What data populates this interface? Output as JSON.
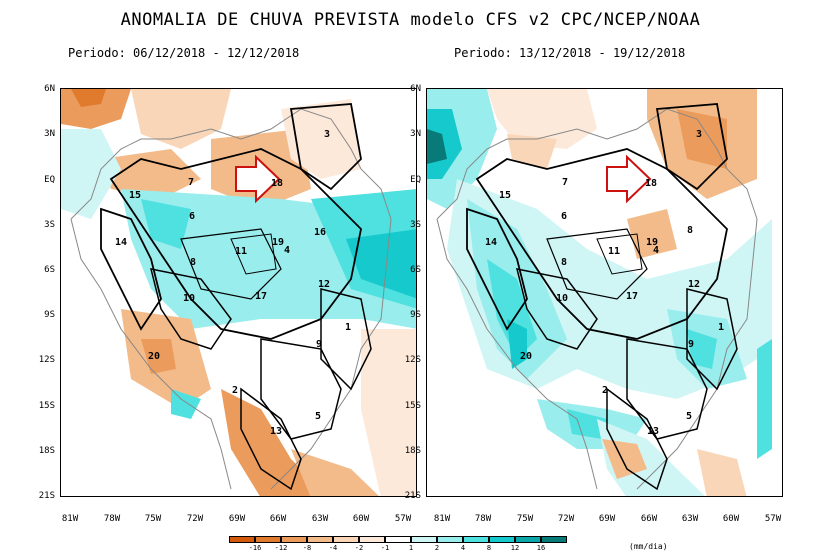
{
  "title": "ANOMALIA DE CHUVA PREVISTA modelo CFS v2 CPC/NCEP/NOAA",
  "panels": [
    {
      "period": "Periodo: 06/12/2018 - 12/12/2018",
      "region_numbers": [
        "3",
        "7",
        "18",
        "15",
        "6",
        "14",
        "19",
        "16",
        "4",
        "11",
        "8",
        "12",
        "17",
        "10",
        "1",
        "9",
        "20",
        "2",
        "5",
        "13"
      ]
    },
    {
      "period": "Periodo: 13/12/2018 - 19/12/2018",
      "region_numbers": [
        "3",
        "7",
        "18",
        "15",
        "6",
        "14",
        "19",
        "8",
        "4",
        "11",
        "8",
        "12",
        "17",
        "10",
        "1",
        "9",
        "20",
        "2",
        "5",
        "13"
      ]
    }
  ],
  "y_axis_labels": [
    "6N",
    "3N",
    "EQ",
    "3S",
    "6S",
    "9S",
    "12S",
    "15S",
    "18S",
    "21S"
  ],
  "x_axis_labels": [
    "81W",
    "78W",
    "75W",
    "72W",
    "69W",
    "66W",
    "63W",
    "60W",
    "57W"
  ],
  "colorbar": {
    "labels": [
      "-16",
      "-12",
      "-8",
      "-4",
      "-2",
      "-1",
      "1",
      "2",
      "4",
      "8",
      "12",
      "16"
    ],
    "unit": "(mm/dia)",
    "colors": [
      "#d35a0a",
      "#e07b2e",
      "#eb9c5c",
      "#f3bb8a",
      "#f9d6b8",
      "#fde9da",
      "#ffffff",
      "#cff5f5",
      "#9aeded",
      "#4fe0e0",
      "#16c9cc",
      "#0aa7a8",
      "#087a78"
    ]
  }
}
